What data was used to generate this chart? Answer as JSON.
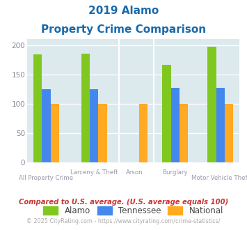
{
  "title_line1": "2019 Alamo",
  "title_line2": "Property Crime Comparison",
  "series": {
    "Alamo": [
      184,
      185,
      null,
      166,
      197
    ],
    "Tennessee": [
      124,
      124,
      null,
      127,
      127
    ],
    "National": [
      100,
      100,
      100,
      100,
      100
    ]
  },
  "colors": {
    "Alamo": "#80c820",
    "Tennessee": "#4488ee",
    "National": "#ffaa22"
  },
  "ylim": [
    0,
    210
  ],
  "yticks": [
    0,
    50,
    100,
    150,
    200
  ],
  "plot_bg_color": "#ddeaed",
  "title_color": "#1a6aaa",
  "axis_label_color": "#9999aa",
  "legend_label_color": "#444444",
  "footnote1": "Compared to U.S. average. (U.S. average equals 100)",
  "footnote2": "© 2025 CityRating.com - https://www.cityrating.com/crime-statistics/",
  "footnote1_color": "#cc3333",
  "footnote2_color": "#aaaaaa",
  "bar_width": 0.18,
  "x_positions": [
    0.3,
    1.3,
    2.15,
    3.0,
    3.95
  ],
  "label_top": [
    "",
    "Larceny & Theft",
    "Arson",
    "Burglary",
    ""
  ],
  "label_bottom": [
    "All Property Crime",
    "",
    "",
    "",
    "Motor Vehicle Theft"
  ]
}
